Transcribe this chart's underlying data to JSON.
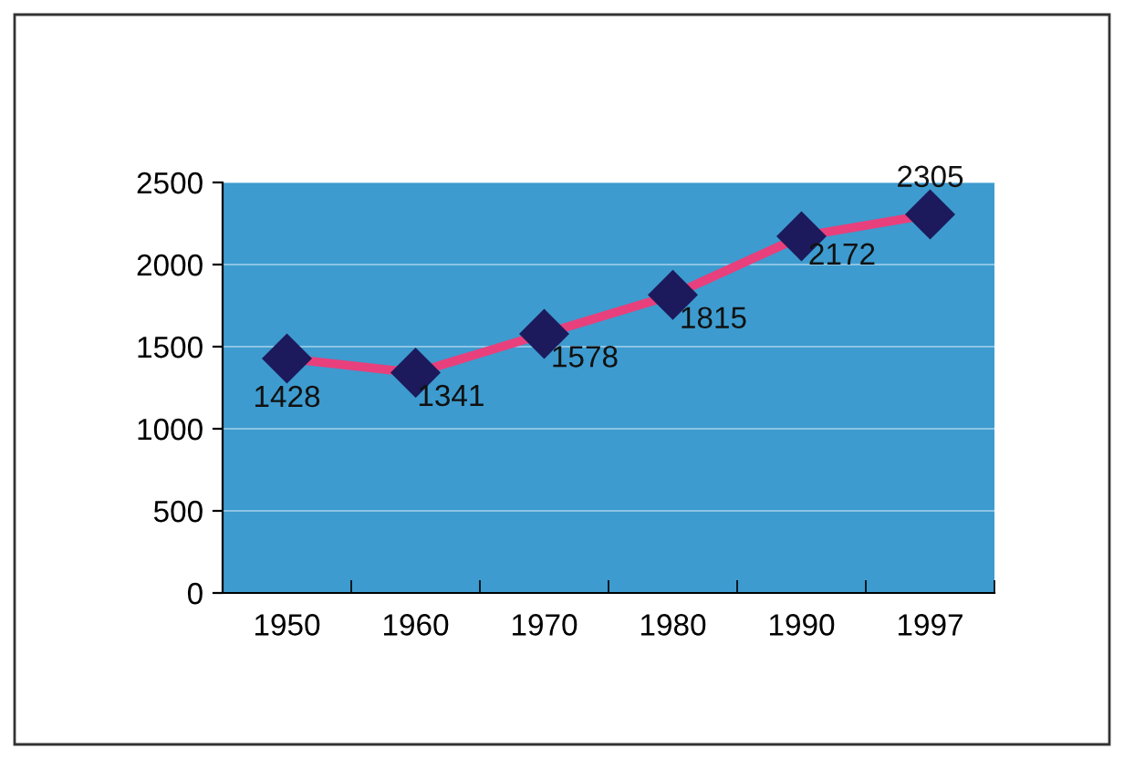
{
  "chart_data": {
    "type": "line",
    "categories": [
      "1950",
      "1960",
      "1970",
      "1980",
      "1990",
      "1997"
    ],
    "series": [
      {
        "color": "#e8407c",
        "values": [
          1428,
          1341,
          1578,
          1815,
          2172,
          2305
        ]
      }
    ],
    "ylim": [
      0,
      2500
    ],
    "yticks": [
      0,
      500,
      1000,
      1500,
      2000,
      2500
    ],
    "grid": "y",
    "marker": "diamond",
    "line_style": "solid",
    "data_labels": true,
    "legend": false
  }
}
